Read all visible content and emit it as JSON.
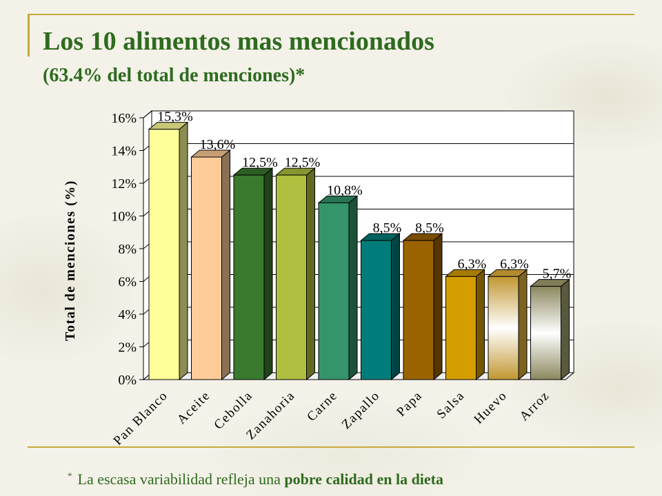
{
  "title": "Los 10 alimentos mas mencionados",
  "subtitle": "(63.4% del total de menciones)*",
  "footnote": {
    "star": "*",
    "text": "La escasa variabilidad refleja una",
    "bold": "pobre calidad en la dieta"
  },
  "colors": {
    "title": "#2e6b1f",
    "rule": "#c8a83a"
  },
  "chart_data": {
    "type": "bar",
    "ylabel": "Total de menciones (%)",
    "xlabel": "",
    "ylim": [
      0,
      16
    ],
    "yticks": [
      "0%",
      "2%",
      "4%",
      "6%",
      "8%",
      "10%",
      "12%",
      "14%",
      "16%"
    ],
    "grid": true,
    "categories": [
      "Pan Blanco",
      "Aceite",
      "Cebolla",
      "Zanahoria",
      "Carne",
      "Zapallo",
      "Papa",
      "Salsa",
      "Huevo",
      "Arroz"
    ],
    "values": [
      15.3,
      13.6,
      12.5,
      12.5,
      10.8,
      8.5,
      8.5,
      6.3,
      6.3,
      5.7
    ],
    "data_labels": [
      "15,3%",
      "13,6%",
      "12,5%",
      "12,5%",
      "10,8%",
      "8,5%",
      "8,5%",
      "6,3%",
      "6,3%",
      "5,7%"
    ],
    "bar_colors": [
      "#ffff99",
      "#ffcc99",
      "#3a7a2e",
      "#b0bf3f",
      "#35956a",
      "#007d7a",
      "#9a6300",
      "#d49e00",
      "#e3b23a",
      "#a4a070"
    ]
  }
}
